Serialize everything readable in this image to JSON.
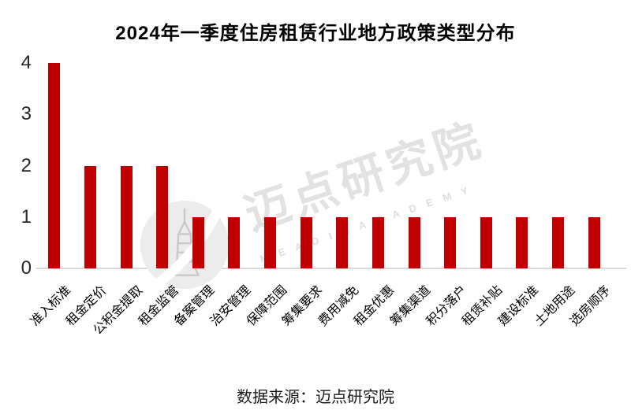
{
  "title": "2024年一季度住房租赁行业地方政策类型分布",
  "source": "数据来源：迈点研究院",
  "watermark": {
    "text": "迈点研究院",
    "subtext": "M E A D I N   A C A D E M Y"
  },
  "colors": {
    "bar": "#c00000",
    "axis_line": "#d9d9d9",
    "tick_text": "#262626",
    "watermark_text": "#e2e2e2"
  },
  "chart_data": {
    "type": "bar",
    "title": "2024年一季度住房租赁行业地方政策类型分布",
    "categories": [
      "准入标准",
      "租金定价",
      "公积金提取",
      "租金监管",
      "备案管理",
      "治安管理",
      "保障范围",
      "筹集要求",
      "费用减免",
      "租金优惠",
      "筹集渠道",
      "积分落户",
      "租赁补贴",
      "建设标准",
      "土地用途",
      "选房顺序"
    ],
    "values": [
      4,
      2,
      2,
      2,
      1,
      1,
      1,
      1,
      1,
      1,
      1,
      1,
      1,
      1,
      1,
      1
    ],
    "xlabel": "",
    "ylabel": "",
    "ylim": [
      0,
      4
    ],
    "yticks": [
      0,
      1,
      2,
      3,
      4
    ],
    "grid": false,
    "legend": null,
    "bar_color": "#c00000",
    "x_tick_rotation_deg": 45
  }
}
